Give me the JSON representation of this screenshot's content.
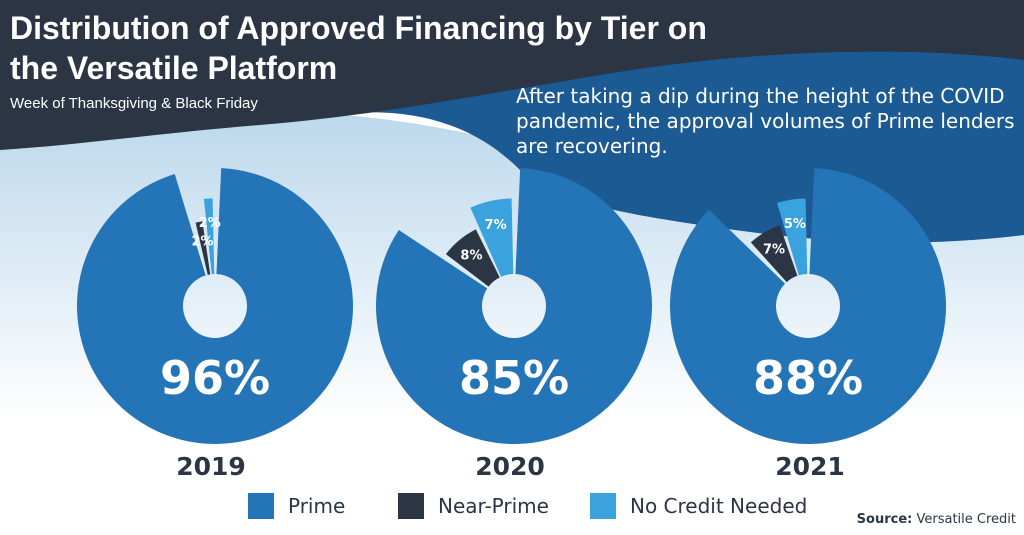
{
  "header": {
    "title": "Distribution of Approved Financing by Tier on the Versatile Platform",
    "subtitle": "Week of Thanksgiving & Black Friday",
    "annotation": "After taking a dip during the height of the COVID pandemic, the approval volumes of Prime lenders are recovering."
  },
  "colors": {
    "prime": "#2475b7",
    "near_prime": "#2b3544",
    "no_credit": "#3aa3de",
    "header_dark": "#2b3544",
    "wave_blue": "#1c5a94"
  },
  "chart_data": [
    {
      "type": "pie",
      "title": "2019",
      "categories": [
        "Prime",
        "Near-Prime",
        "No Credit Needed"
      ],
      "values": [
        96,
        2,
        2
      ],
      "labels": [
        "96%",
        "2%",
        "2%"
      ]
    },
    {
      "type": "pie",
      "title": "2020",
      "categories": [
        "Prime",
        "Near-Prime",
        "No Credit Needed"
      ],
      "values": [
        85,
        8,
        7
      ],
      "labels": [
        "85%",
        "8%",
        "7%"
      ]
    },
    {
      "type": "pie",
      "title": "2021",
      "categories": [
        "Prime",
        "Near-Prime",
        "No Credit Needed"
      ],
      "values": [
        88,
        7,
        5
      ],
      "labels": [
        "88%",
        "7%",
        "5%"
      ]
    }
  ],
  "legend": [
    {
      "label": "Prime",
      "color": "#2475b7"
    },
    {
      "label": "Near-Prime",
      "color": "#2b3544"
    },
    {
      "label": "No Credit Needed",
      "color": "#3aa3de"
    }
  ],
  "source": {
    "label": "Source:",
    "value": "Versatile Credit"
  }
}
